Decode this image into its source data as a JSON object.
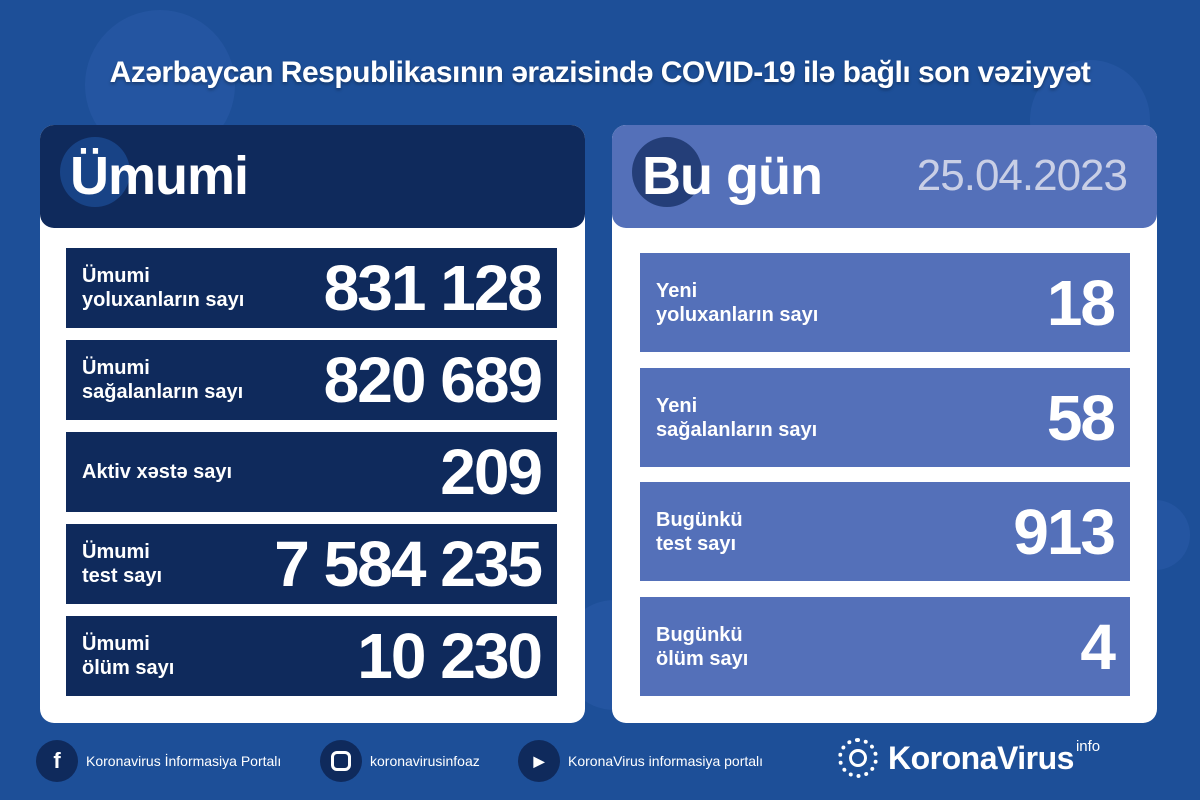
{
  "title": "Azərbaycan Respublikasının ərazisində COVID-19 ilə bağlı son vəziyyət",
  "total": {
    "heading": "Ümumi",
    "rows": [
      {
        "label": "Ümumi\nyoluxanların sayı",
        "value": "831 128"
      },
      {
        "label": "Ümumi\nsağalanların sayı",
        "value": "820 689"
      },
      {
        "label": "Aktiv xəstə sayı",
        "value": "209"
      },
      {
        "label": "Ümumi\ntest sayı",
        "value": "7 584 235"
      },
      {
        "label": "Ümumi\nölüm sayı",
        "value": "10 230"
      }
    ]
  },
  "today": {
    "heading": "Bu gün",
    "date": "25.04.2023",
    "rows": [
      {
        "label": "Yeni\nyoluxanların sayı",
        "value": "18"
      },
      {
        "label": "Yeni\nsağalanların sayı",
        "value": "58"
      },
      {
        "label": "Bugünkü\ntest sayı",
        "value": "913"
      },
      {
        "label": "Bugünkü\nölüm sayı",
        "value": "4"
      }
    ]
  },
  "footer": {
    "facebook": "Koronavirus İnformasiya Portalı",
    "instagram": "koronavirusinfoaz",
    "youtube": "KoronaVirus informasiya portalı",
    "logo": "KoronaVirus",
    "logo_sup": "info"
  },
  "colors": {
    "background": "#1d4f98",
    "dark_row": "#0f2a5c",
    "light_row": "#5470b9"
  }
}
